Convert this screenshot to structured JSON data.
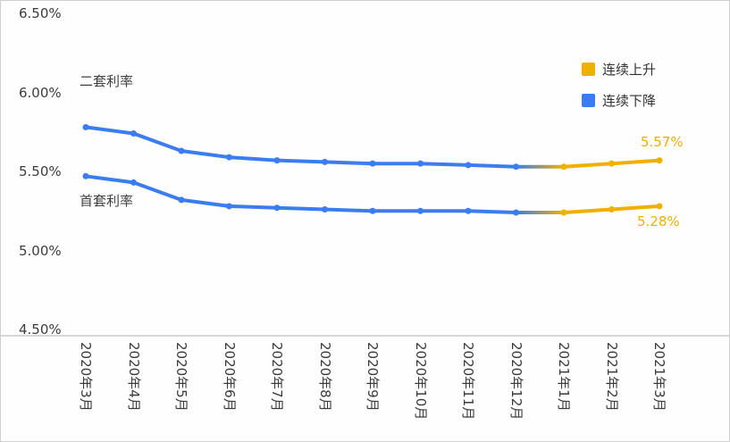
{
  "chart": {
    "colors": {
      "rise": "#EFB000",
      "fall": "#3B7CF0",
      "axis_text": "#3b3b3b",
      "axis_line": "#adadad"
    },
    "legend": [
      {
        "label": "连续上升",
        "color_key": "rise"
      },
      {
        "label": "连续下降",
        "color_key": "fall"
      }
    ],
    "annotations": {
      "series2_label": "二套利率",
      "series1_label": "首套利率",
      "end_label_series2": "5.57%",
      "end_label_series1": "5.28%"
    }
  },
  "chart_data": {
    "type": "line",
    "title": "",
    "categories": [
      "2020年3月",
      "2020年4月",
      "2020年5月",
      "2020年6月",
      "2020年7月",
      "2020年8月",
      "2020年9月",
      "2020年10月",
      "2020年11月",
      "2020年12月",
      "2021年1月",
      "2021年2月",
      "2021年3月"
    ],
    "series": [
      {
        "name": "二套利率",
        "values": [
          5.78,
          5.74,
          5.63,
          5.59,
          5.57,
          5.56,
          5.55,
          5.55,
          5.54,
          5.53,
          5.53,
          5.55,
          5.57
        ],
        "end_label": "5.57%"
      },
      {
        "name": "首套利率",
        "values": [
          5.47,
          5.43,
          5.32,
          5.28,
          5.27,
          5.26,
          5.25,
          5.25,
          5.25,
          5.24,
          5.24,
          5.26,
          5.28
        ],
        "end_label": "5.28%"
      }
    ],
    "xlabel": "",
    "ylabel": "",
    "ylim": [
      4.5,
      6.5
    ],
    "yticks": [
      "6.50%",
      "6.00%",
      "5.50%",
      "5.00%",
      "4.50%"
    ],
    "rise_start_index": 10,
    "legend_position": "top-right",
    "grid": false
  }
}
